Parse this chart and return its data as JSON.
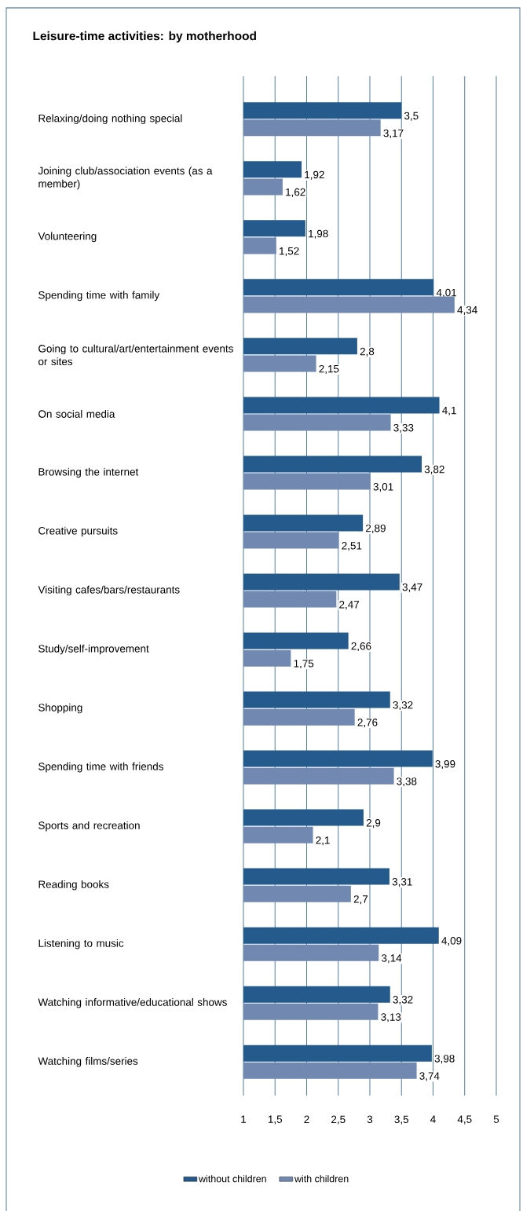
{
  "chart_data": {
    "type": "bar",
    "orientation": "horizontal",
    "title": "Leisure-time activities: by motherhood",
    "categories": [
      "Relaxing/doing nothing special",
      "Joining club/association events (as a member)",
      "Volunteering",
      "Spending time with family",
      "Going to cultural/art/entertainment events or sites",
      "On social media",
      "Browsing the internet",
      "Creative pursuits",
      "Visiting cafes/bars/restaurants",
      "Study/self-improvement",
      "Shopping",
      "Spending time with friends",
      "Sports and recreation",
      "Reading books",
      "Listening to music",
      "Watching informative/educational shows",
      "Watching films/series"
    ],
    "series": [
      {
        "name": "without children",
        "color": "#245a8c",
        "values": [
          3.5,
          1.92,
          1.98,
          4.01,
          2.8,
          4.1,
          3.82,
          2.89,
          3.47,
          2.66,
          3.32,
          3.99,
          2.9,
          3.31,
          4.09,
          3.32,
          3.98
        ],
        "value_labels": [
          "3,5",
          "1,92",
          "1,98",
          "4,01",
          "2,8",
          "4,1",
          "3,82",
          "2,89",
          "3,47",
          "2,66",
          "3,32",
          "3,99",
          "2,9",
          "3,31",
          "4,09",
          "3,32",
          "3,98"
        ]
      },
      {
        "name": "with children",
        "color": "#7189b0",
        "values": [
          3.17,
          1.62,
          1.52,
          4.34,
          2.15,
          3.33,
          3.01,
          2.51,
          2.47,
          1.75,
          2.76,
          3.38,
          2.1,
          2.7,
          3.14,
          3.13,
          3.74
        ],
        "value_labels": [
          "3,17",
          "1,62",
          "1,52",
          "4,34",
          "2,15",
          "3,33",
          "3,01",
          "2,51",
          "2,47",
          "1,75",
          "2,76",
          "3,38",
          "2,1",
          "2,7",
          "3,14",
          "3,13",
          "3,74"
        ]
      }
    ],
    "xlim": [
      1,
      5
    ],
    "xticks": [
      1,
      {
        "value": 1.5,
        "label": "1,5"
      },
      2,
      {
        "value": 2.5,
        "label": "2,5"
      },
      3,
      {
        "value": 3.5,
        "label": "3,5"
      },
      4,
      {
        "value": 4.5,
        "label": "4,5"
      },
      5
    ],
    "grid": "x",
    "legend": "bottom"
  }
}
